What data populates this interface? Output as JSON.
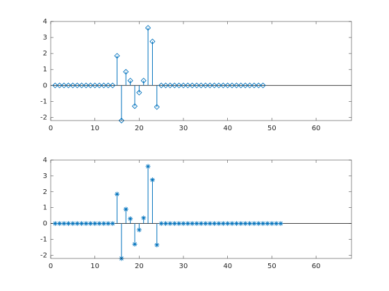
{
  "chart_data": [
    {
      "type": "stem",
      "marker": "diamond",
      "color": "#0072bd",
      "x": [
        1,
        2,
        3,
        4,
        5,
        6,
        7,
        8,
        9,
        10,
        11,
        12,
        13,
        14,
        15,
        16,
        17,
        18,
        19,
        20,
        21,
        22,
        23,
        24,
        25,
        26,
        27,
        28,
        29,
        30,
        31,
        32,
        33,
        34,
        35,
        36,
        37,
        38,
        39,
        40,
        41,
        42,
        43,
        44,
        45,
        46,
        47,
        48
      ],
      "values": [
        0,
        0,
        0,
        0,
        0,
        0,
        0,
        0,
        0,
        0,
        0,
        0,
        0,
        0,
        1.85,
        -2.2,
        0.85,
        0.3,
        -1.3,
        -0.45,
        0.3,
        3.6,
        2.75,
        -1.35,
        0,
        0,
        0,
        0,
        0,
        0,
        0,
        0,
        0,
        0,
        0,
        0,
        0,
        0,
        0,
        0,
        0,
        0,
        0,
        0,
        0,
        0,
        0,
        0
      ],
      "xlim": [
        0,
        68
      ],
      "xticks": [
        0,
        10,
        20,
        30,
        40,
        50,
        60
      ],
      "ylim": [
        -2.2,
        4
      ],
      "yticks": [
        -2,
        -1,
        0,
        1,
        2,
        3,
        4
      ]
    },
    {
      "type": "stem",
      "marker": "asterisk",
      "color": "#0072bd",
      "x": [
        1,
        2,
        3,
        4,
        5,
        6,
        7,
        8,
        9,
        10,
        11,
        12,
        13,
        14,
        15,
        16,
        17,
        18,
        19,
        20,
        21,
        22,
        23,
        24,
        25,
        26,
        27,
        28,
        29,
        30,
        31,
        32,
        33,
        34,
        35,
        36,
        37,
        38,
        39,
        40,
        41,
        42,
        43,
        44,
        45,
        46,
        47,
        48,
        49,
        50,
        51,
        52
      ],
      "values": [
        0,
        0,
        0,
        0,
        0,
        0,
        0,
        0,
        0,
        0,
        0,
        0,
        0,
        0,
        1.85,
        -2.2,
        0.9,
        0.3,
        -1.3,
        -0.4,
        0.35,
        3.6,
        2.75,
        -1.35,
        0,
        0,
        0,
        0,
        0,
        0,
        0,
        0,
        0,
        0,
        0,
        0,
        0,
        0,
        0,
        0,
        0,
        0,
        0,
        0,
        0,
        0,
        0,
        0,
        0,
        0,
        0,
        0
      ],
      "xlim": [
        0,
        68
      ],
      "xticks": [
        0,
        10,
        20,
        30,
        40,
        50,
        60
      ],
      "ylim": [
        -2.2,
        4
      ],
      "yticks": [
        -2,
        -1,
        0,
        1,
        2,
        3,
        4
      ]
    }
  ]
}
